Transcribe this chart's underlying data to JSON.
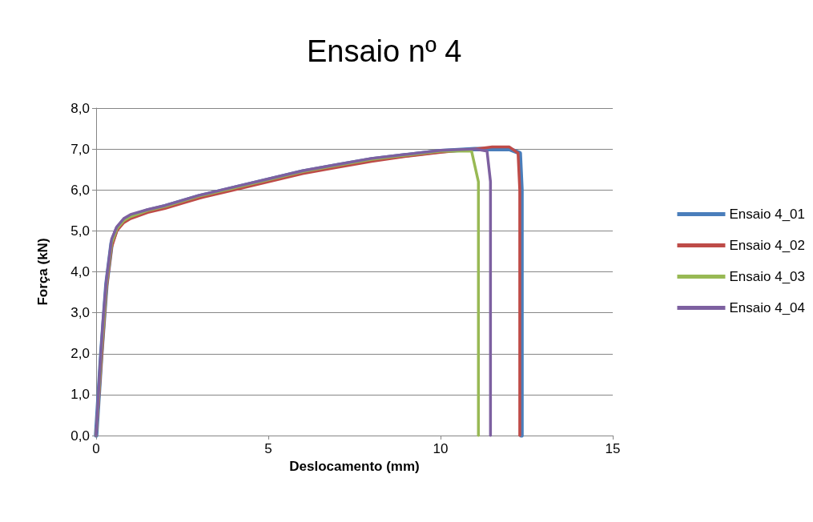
{
  "chart_data": {
    "type": "line",
    "title": "Ensaio nº 4",
    "xlabel": "Deslocamento (mm)",
    "ylabel": "Força (kN)",
    "xlim": [
      0,
      15
    ],
    "xticks": [
      0,
      5,
      10,
      15
    ],
    "ylim": [
      0,
      8
    ],
    "yticks": [
      {
        "value": 0,
        "label": "0,0"
      },
      {
        "value": 1,
        "label": "1,0"
      },
      {
        "value": 2,
        "label": "2,0"
      },
      {
        "value": 3,
        "label": "3,0"
      },
      {
        "value": 4,
        "label": "4,0"
      },
      {
        "value": 5,
        "label": "5,0"
      },
      {
        "value": 6,
        "label": "6,0"
      },
      {
        "value": 7,
        "label": "7,0"
      },
      {
        "value": 8,
        "label": "8,0"
      }
    ],
    "grid": "y",
    "legend": "right",
    "marker": "none",
    "line_style": "solid",
    "series": [
      {
        "name": "Ensaio 4_01",
        "color": "#4a7ebb",
        "x": [
          0,
          0.15,
          0.3,
          0.45,
          0.6,
          0.8,
          1,
          1.5,
          2,
          3,
          4,
          5,
          6,
          7,
          8,
          9,
          10,
          11,
          11.5,
          12,
          12.3,
          12.35,
          12.35
        ],
        "values": [
          0,
          2,
          3.7,
          4.7,
          5.05,
          5.25,
          5.35,
          5.5,
          5.6,
          5.85,
          6.05,
          6.25,
          6.45,
          6.6,
          6.75,
          6.85,
          6.95,
          7,
          7,
          7,
          6.9,
          6,
          0
        ]
      },
      {
        "name": "Ensaio 4_02",
        "color": "#be4b48",
        "x": [
          0,
          0.15,
          0.3,
          0.45,
          0.6,
          0.8,
          1,
          1.5,
          2,
          3,
          4,
          5,
          6,
          7,
          8,
          9,
          10,
          11,
          11.5,
          12,
          12.25,
          12.3,
          12.3
        ],
        "values": [
          0,
          1.8,
          3.6,
          4.6,
          5,
          5.2,
          5.3,
          5.45,
          5.55,
          5.8,
          6,
          6.2,
          6.4,
          6.55,
          6.7,
          6.82,
          6.92,
          7,
          7.05,
          7.05,
          6.9,
          6,
          0
        ]
      },
      {
        "name": "Ensaio 4_03",
        "color": "#98b954",
        "x": [
          0,
          0.15,
          0.3,
          0.45,
          0.6,
          0.8,
          1,
          1.5,
          2,
          3,
          4,
          5,
          6,
          7,
          8,
          9,
          10,
          10.9,
          11.1,
          11.1
        ],
        "values": [
          0,
          2,
          3.7,
          4.7,
          5.05,
          5.25,
          5.35,
          5.5,
          5.6,
          5.85,
          6.05,
          6.25,
          6.45,
          6.6,
          6.75,
          6.85,
          6.95,
          6.95,
          6.2,
          0
        ]
      },
      {
        "name": "Ensaio 4_04",
        "color": "#7d60a0",
        "x": [
          0,
          0.1,
          0.2,
          0.3,
          0.45,
          0.6,
          0.8,
          1,
          1.5,
          2,
          3,
          4,
          5,
          6,
          7,
          8,
          9,
          10,
          11,
          11.35,
          11.45,
          11.45
        ],
        "values": [
          0,
          1.5,
          2.8,
          3.8,
          4.8,
          5.1,
          5.3,
          5.4,
          5.52,
          5.62,
          5.87,
          6.07,
          6.27,
          6.47,
          6.62,
          6.77,
          6.87,
          6.97,
          7,
          6.95,
          6.2,
          0
        ]
      }
    ]
  }
}
